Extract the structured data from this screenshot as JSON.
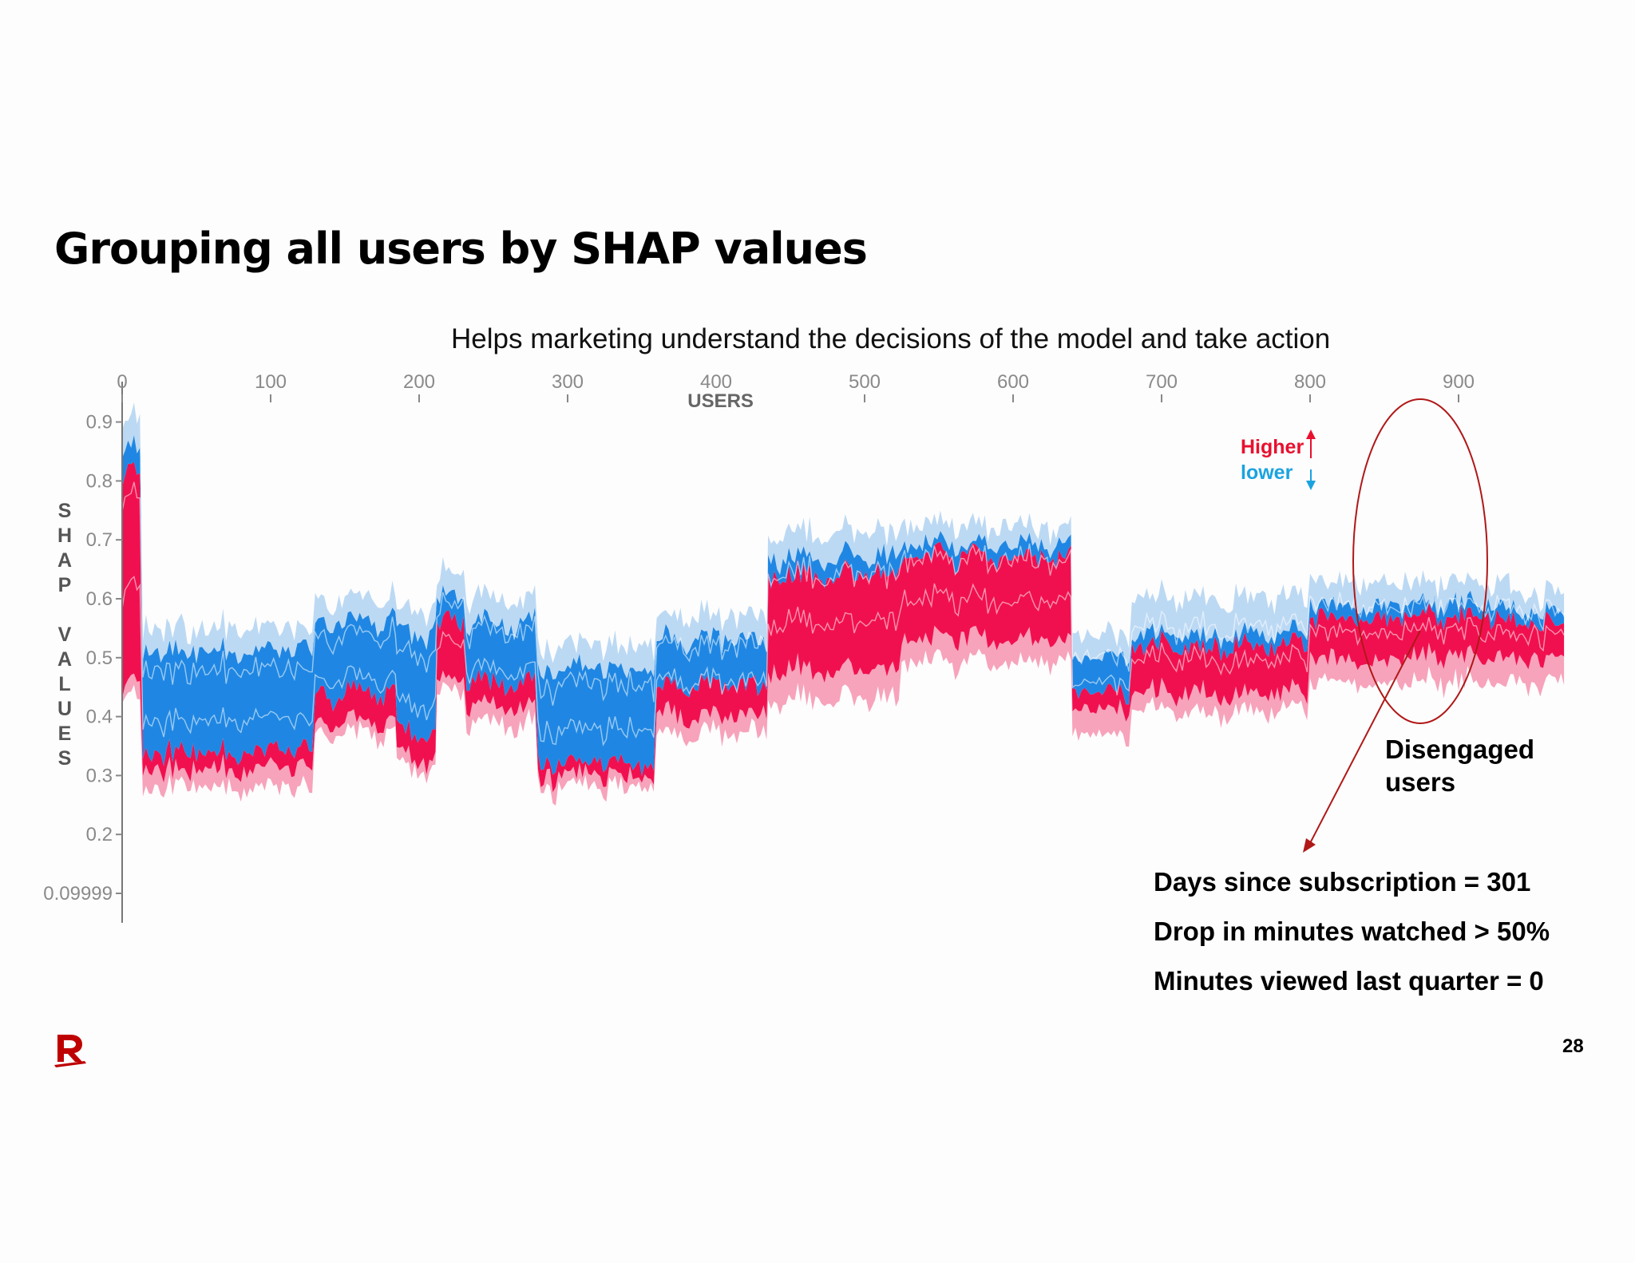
{
  "slide": {
    "title": "Grouping all users by SHAP values",
    "subtitle": "Helps marketing understand the decisions of the model and take action",
    "page_number": "28",
    "logo_icon": "rakuten-r-logo"
  },
  "annotations": {
    "legend_higher": "Higher",
    "legend_lower": "lower",
    "callout_label": "Disengaged users",
    "facts": [
      "Days since subscription = 301",
      "Drop in minutes watched  > 50%",
      "Minutes viewed last quarter = 0"
    ],
    "higher_color": "#e8102e",
    "lower_color": "#1aa3e0",
    "highlight_color": "#b01818"
  },
  "chart_data": {
    "type": "area",
    "xlabel": "USERS",
    "ylabel": "SHAP VALUES",
    "x_axis_position": "top",
    "xlim": [
      0,
      1000
    ],
    "ylim": [
      0.09999,
      0.93
    ],
    "x_ticks": [
      0,
      100,
      200,
      300,
      400,
      500,
      600,
      700,
      800,
      900
    ],
    "y_ticks": [
      0.09999,
      0.2,
      0.3,
      0.4,
      0.5,
      0.6,
      0.7,
      0.8,
      0.9
    ],
    "y_tick_labels": [
      "0.09999",
      "0.2",
      "0.3",
      "0.4",
      "0.5",
      "0.6",
      "0.7",
      "0.8",
      "0.9"
    ],
    "grid": false,
    "colors": {
      "pink": "#f7a3bb",
      "red": "#f1104f",
      "blue": "#1f87e3",
      "lightblue": "#bcd9f4"
    },
    "segments": [
      {
        "x": [
          0,
          14
        ],
        "bottom": 0.43,
        "pink": 0.45,
        "red": 0.81,
        "blue": 0.85,
        "top": 0.9
      },
      {
        "x": [
          14,
          130
        ],
        "bottom": 0.28,
        "pink": 0.31,
        "red": 0.34,
        "blue": 0.51,
        "top": 0.55
      },
      {
        "x": [
          130,
          185
        ],
        "bottom": 0.37,
        "pink": 0.39,
        "red": 0.44,
        "blue": 0.56,
        "top": 0.6
      },
      {
        "x": [
          185,
          212
        ],
        "bottom": 0.31,
        "pink": 0.33,
        "red": 0.37,
        "blue": 0.54,
        "top": 0.58
      },
      {
        "x": [
          212,
          232
        ],
        "bottom": 0.44,
        "pink": 0.46,
        "red": 0.56,
        "blue": 0.6,
        "top": 0.64
      },
      {
        "x": [
          232,
          280
        ],
        "bottom": 0.39,
        "pink": 0.42,
        "red": 0.46,
        "blue": 0.56,
        "top": 0.6
      },
      {
        "x": [
          280,
          360
        ],
        "bottom": 0.28,
        "pink": 0.3,
        "red": 0.32,
        "blue": 0.48,
        "top": 0.52
      },
      {
        "x": [
          360,
          435
        ],
        "bottom": 0.37,
        "pink": 0.4,
        "red": 0.45,
        "blue": 0.53,
        "top": 0.57
      },
      {
        "x": [
          435,
          525
        ],
        "bottom": 0.43,
        "pink": 0.48,
        "red": 0.64,
        "blue": 0.67,
        "top": 0.71
      },
      {
        "x": [
          525,
          640
        ],
        "bottom": 0.49,
        "pink": 0.53,
        "red": 0.67,
        "blue": 0.69,
        "top": 0.72
      },
      {
        "x": [
          640,
          680
        ],
        "bottom": 0.37,
        "pink": 0.41,
        "red": 0.44,
        "blue": 0.5,
        "top": 0.54
      },
      {
        "x": [
          680,
          800
        ],
        "bottom": 0.41,
        "pink": 0.44,
        "red": 0.52,
        "blue": 0.54,
        "top": 0.6
      },
      {
        "x": [
          800,
          935
        ],
        "bottom": 0.46,
        "pink": 0.5,
        "red": 0.57,
        "blue": 0.59,
        "top": 0.63
      },
      {
        "x": [
          935,
          1000
        ],
        "bottom": 0.46,
        "pink": 0.5,
        "red": 0.56,
        "blue": 0.58,
        "top": 0.61
      }
    ]
  }
}
